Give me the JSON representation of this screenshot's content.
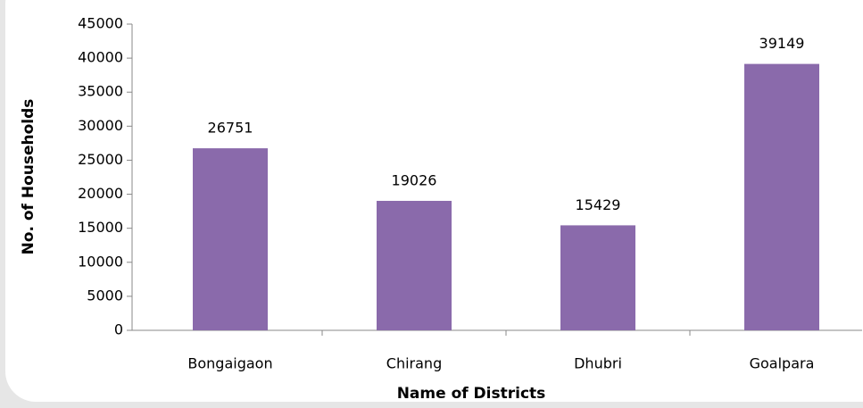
{
  "chart_data": {
    "type": "bar",
    "x_label": "Name of Districts",
    "y_label": "No. of Households",
    "categories": [
      "Bongaigaon",
      "Chirang",
      "Dhubri",
      "Goalpara"
    ],
    "values": [
      26751,
      19026,
      15429,
      39149
    ],
    "color": "#8a6aab",
    "ylim": [
      0,
      45000
    ],
    "yticks": [
      0,
      5000,
      10000,
      15000,
      20000,
      25000,
      30000,
      35000,
      40000,
      45000
    ]
  }
}
